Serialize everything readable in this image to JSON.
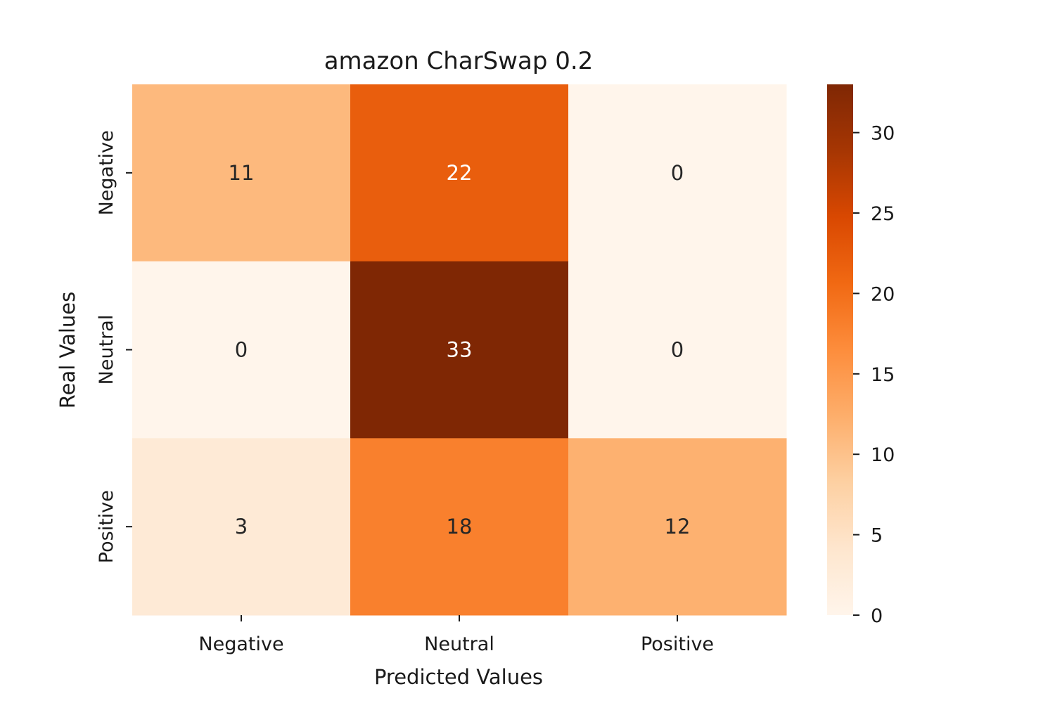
{
  "chart_data": {
    "type": "heatmap",
    "title": "amazon CharSwap 0.2",
    "xlabel": "Predicted Values",
    "ylabel": "Real Values",
    "x_categories": [
      "Negative",
      "Neutral",
      "Positive"
    ],
    "y_categories": [
      "Negative",
      "Neutral",
      "Positive"
    ],
    "values": [
      [
        11,
        22,
        0
      ],
      [
        0,
        33,
        0
      ],
      [
        3,
        18,
        12
      ]
    ],
    "colorbar": {
      "min": 0,
      "max": 33,
      "ticks": [
        0,
        5,
        10,
        15,
        20,
        25,
        30
      ]
    },
    "colormap": [
      "#fff5eb",
      "#fee6ce",
      "#fdd0a2",
      "#fdae6b",
      "#fd8d3c",
      "#f16913",
      "#d94801",
      "#a63603",
      "#7f2704"
    ],
    "annotations_visible": true
  }
}
